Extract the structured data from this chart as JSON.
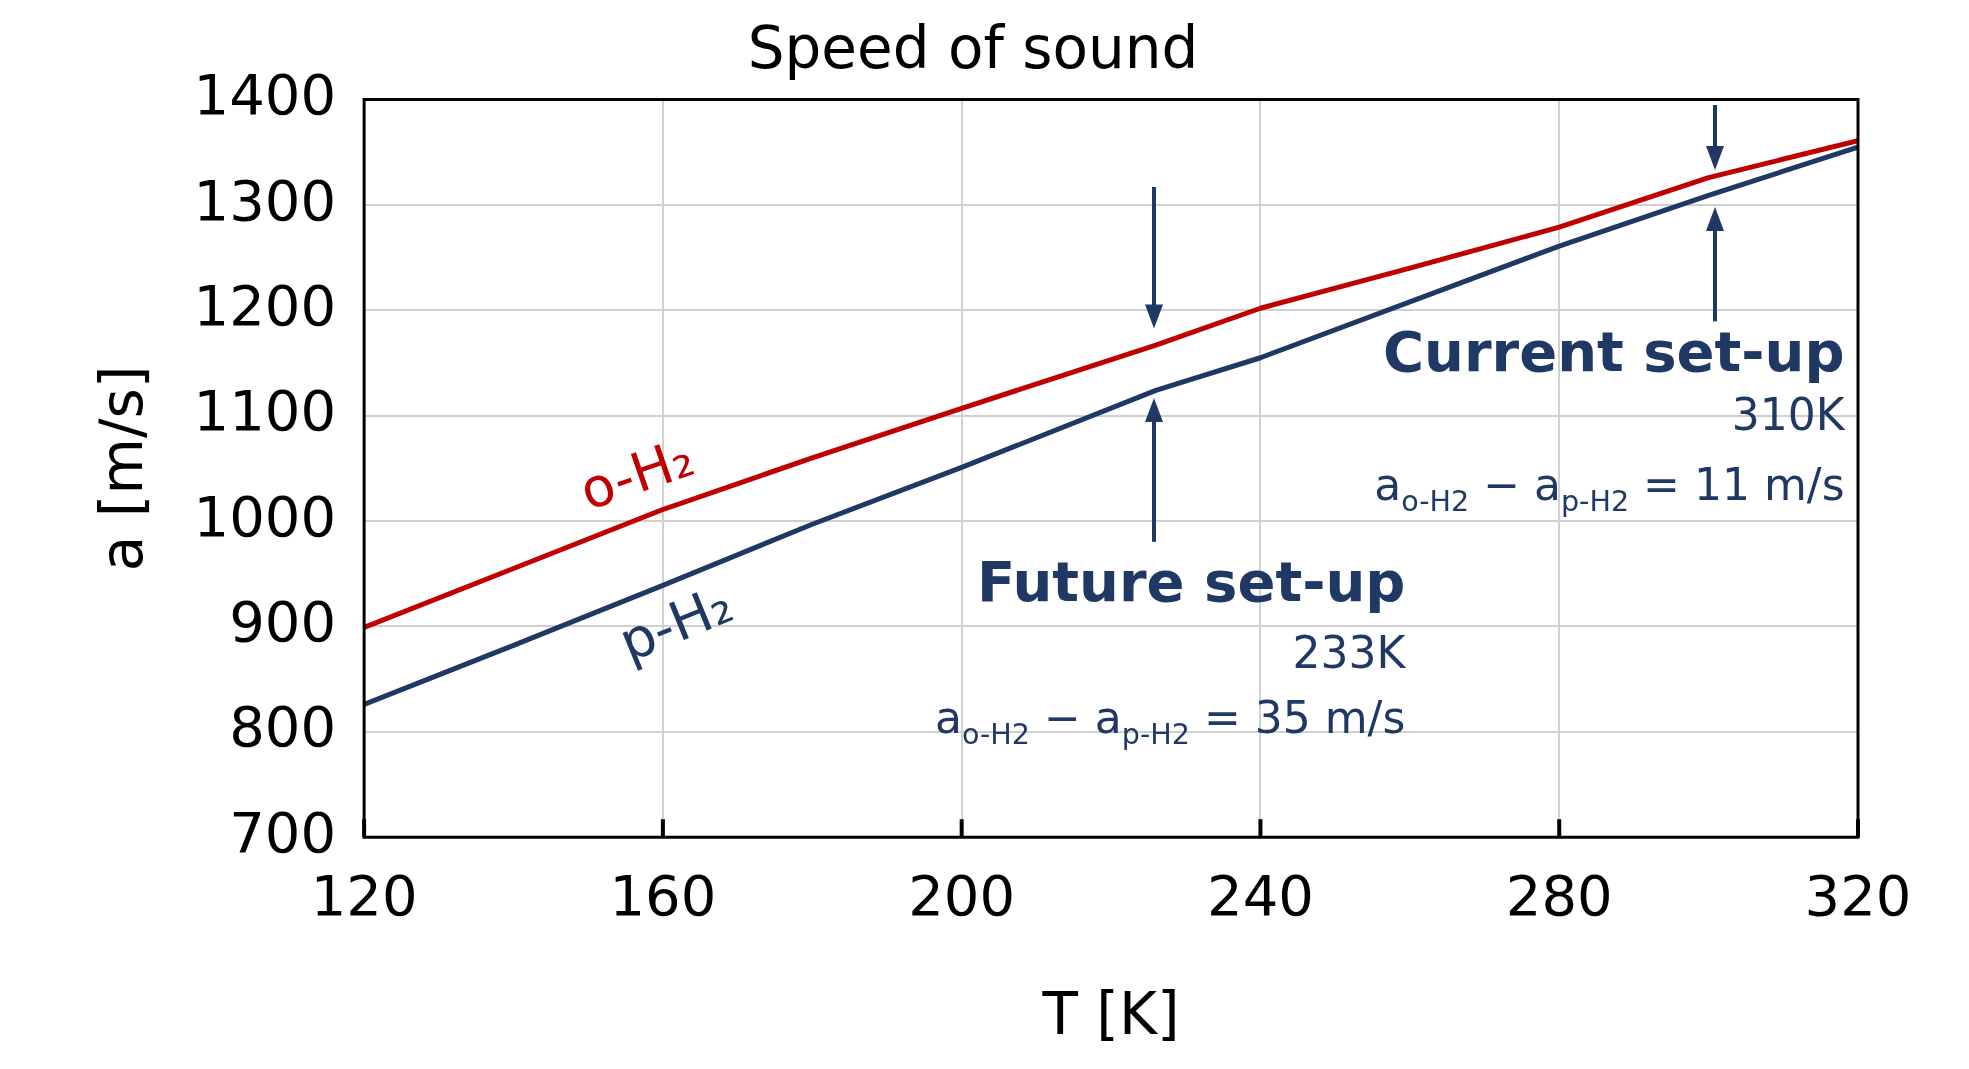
{
  "chart_data": {
    "type": "line",
    "title": "Speed of sound",
    "xlabel": "T [K]",
    "ylabel": "a [m/s]",
    "x": [
      120,
      140,
      160,
      180,
      200,
      226,
      240,
      260,
      280,
      300,
      320
    ],
    "series": [
      {
        "name": "o-H₂",
        "color": "#c00000",
        "values": [
          899,
          955,
          1011,
          1060,
          1107,
          1167,
          1202,
          1240,
          1279,
          1326,
          1361
        ]
      },
      {
        "name": "p-H₂",
        "color": "#1f3864",
        "values": [
          826,
          882,
          939,
          997,
          1051,
          1124,
          1155,
          1208,
          1261,
          1309,
          1355
        ]
      }
    ],
    "xlim": [
      120,
      320
    ],
    "xticks": [
      120,
      160,
      200,
      240,
      280,
      320
    ],
    "ylim": [
      700,
      1400
    ],
    "yticks": [
      700,
      800,
      900,
      1000,
      1100,
      1200,
      1300,
      1400
    ],
    "grid": true,
    "legend": false,
    "marker": "none",
    "line_style": "solid",
    "annotations": [
      "Future set-up",
      "233K",
      "a$_{o-H2}$ − a$_{p-H2}$ = 35 m/s",
      "Current set-up",
      "310K",
      "a$_{o-H2}$ − a$_{p-H2}$ = 11 m/s"
    ]
  }
}
